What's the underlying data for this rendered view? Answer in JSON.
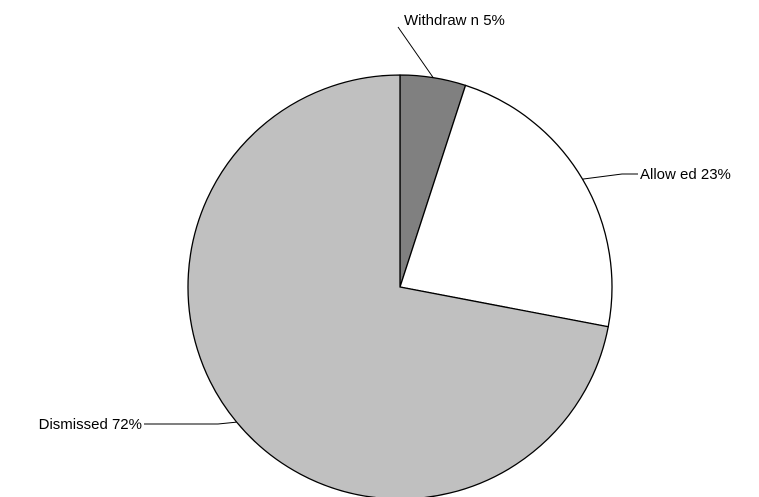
{
  "chart_data": {
    "type": "pie",
    "start_angle_deg": 0,
    "direction": "clockwise",
    "slices": [
      {
        "label": "Withdraw n 5%",
        "value": 5,
        "color": "#808080"
      },
      {
        "label": "Allow ed 23%",
        "value": 23,
        "color": "#ffffff"
      },
      {
        "label": "Dismissed 72%",
        "value": 72,
        "color": "#c0c0c0"
      }
    ]
  }
}
